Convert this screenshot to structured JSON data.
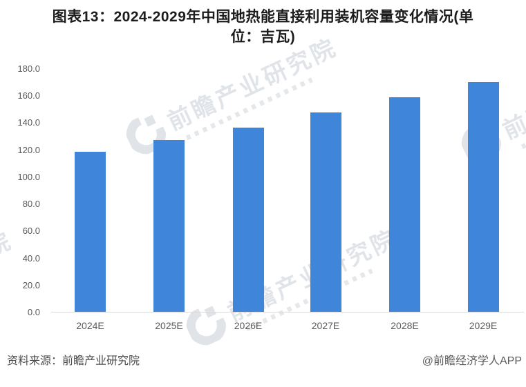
{
  "title": {
    "line1": "图表13：2024-2029年中国地热能直接利用装机容量变化情况(单",
    "line2": "位：吉瓦)",
    "full": "图表13：2024-2029年中国地热能直接利用装机容量变化情况(单位：吉瓦)"
  },
  "footer": {
    "source": "资料来源：前瞻产业研究院",
    "credit": "@前瞻经济学人APP"
  },
  "watermark": {
    "text": "前瞻产业研究院",
    "logo": "qianzhan-circle-logo"
  },
  "chart_data": {
    "type": "bar",
    "title": "图表13：2024-2029年中国地热能直接利用装机容量变化情况(单位：吉瓦)",
    "unit": "吉瓦",
    "categories": [
      "2024E",
      "2025E",
      "2026E",
      "2027E",
      "2028E",
      "2029E"
    ],
    "values": [
      118.8,
      127.5,
      136.7,
      147.9,
      159.1,
      170.3
    ],
    "ylim": [
      0,
      180
    ],
    "ytick_step": 20,
    "ytick_format_decimals": 1,
    "grid": false,
    "legend": false,
    "bar_color": "#3F85D9",
    "axis_text_color": "#595959",
    "baseline_color": "#d9d9d9"
  }
}
